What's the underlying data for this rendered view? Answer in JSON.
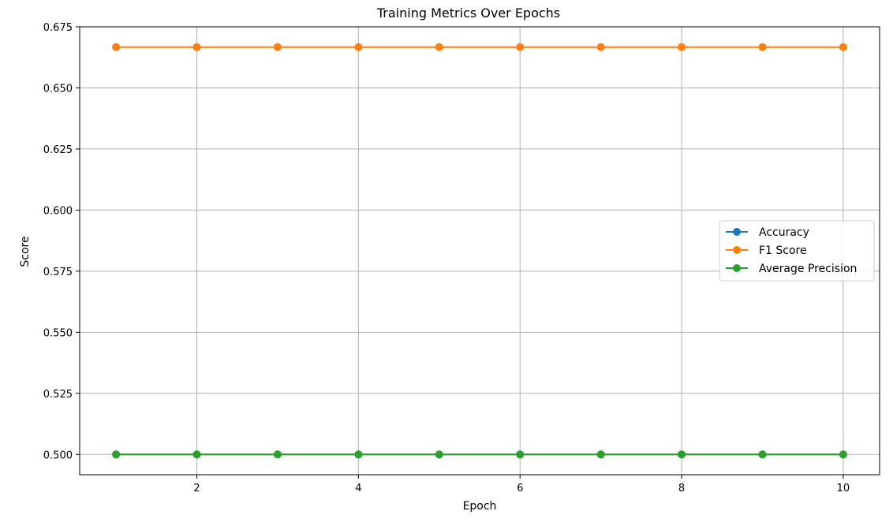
{
  "chart_data": {
    "type": "line",
    "title": "Training Metrics Over Epochs",
    "xlabel": "Epoch",
    "ylabel": "Score",
    "x": [
      1,
      2,
      3,
      4,
      5,
      6,
      7,
      8,
      9,
      10
    ],
    "xlim": [
      0.55,
      10.45
    ],
    "ylim": [
      0.4917,
      0.675
    ],
    "xticks": [
      2,
      4,
      6,
      8,
      10
    ],
    "xtick_labels": [
      "2",
      "4",
      "6",
      "8",
      "10"
    ],
    "yticks": [
      0.5,
      0.525,
      0.55,
      0.575,
      0.6,
      0.625,
      0.65,
      0.675
    ],
    "ytick_labels": [
      "0.500",
      "0.525",
      "0.550",
      "0.575",
      "0.600",
      "0.625",
      "0.650",
      "0.675"
    ],
    "grid": true,
    "legend_position": "center-right",
    "marker": "circle",
    "series": [
      {
        "name": "Accuracy",
        "color": "#1f77b4",
        "values": [
          0.5,
          0.5,
          0.5,
          0.5,
          0.5,
          0.5,
          0.5,
          0.5,
          0.5,
          0.5
        ]
      },
      {
        "name": "F1 Score",
        "color": "#ff7f0e",
        "values": [
          0.6667,
          0.6667,
          0.6667,
          0.6667,
          0.6667,
          0.6667,
          0.6667,
          0.6667,
          0.6667,
          0.6667
        ]
      },
      {
        "name": "Average Precision",
        "color": "#2ca02c",
        "values": [
          0.5,
          0.5,
          0.5,
          0.5,
          0.5,
          0.5,
          0.5,
          0.5,
          0.5,
          0.5
        ]
      }
    ]
  }
}
